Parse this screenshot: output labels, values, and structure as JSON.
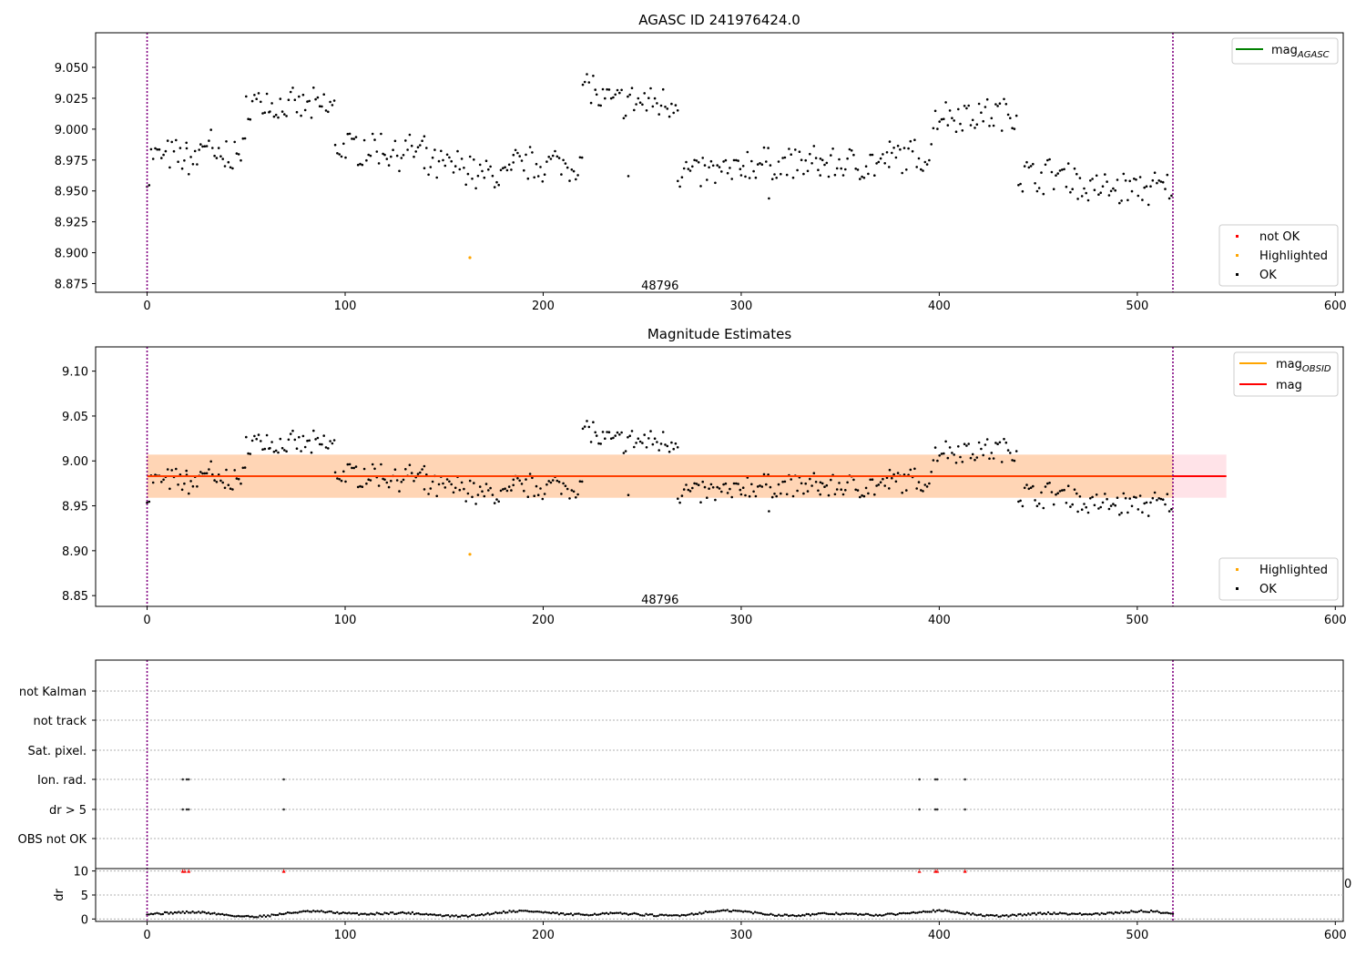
{
  "chart_data": [
    {
      "type": "scatter",
      "title": "AGASC ID 241976424.0",
      "xlim": [
        -26,
        604
      ],
      "ylim": [
        8.868,
        9.078
      ],
      "x_ticks": [
        "0",
        "100",
        "200",
        "300",
        "400",
        "500",
        "600"
      ],
      "y_ticks": [
        "8.875",
        "8.900",
        "8.925",
        "8.950",
        "8.975",
        "9.000",
        "9.025",
        "9.050"
      ],
      "vlines": [
        0,
        518
      ],
      "annotation": {
        "text": "48796",
        "x": 259,
        "y": 8.874
      },
      "legend_lines": [
        {
          "base": "mag",
          "sub": "AGASC",
          "color": "#008000"
        }
      ],
      "legend_points": [
        {
          "label": "not OK",
          "color": "#ff0000"
        },
        {
          "label": "Highlighted",
          "color": "#ffa500"
        },
        {
          "label": "OK",
          "color": "#000000"
        }
      ],
      "highlighted": [
        {
          "x": 163,
          "y": 8.896
        }
      ]
    },
    {
      "type": "scatter",
      "title": "Magnitude Estimates",
      "xlim": [
        -26,
        604
      ],
      "ylim": [
        8.838,
        9.127
      ],
      "x_ticks": [
        "0",
        "100",
        "200",
        "300",
        "400",
        "500",
        "600"
      ],
      "y_ticks": [
        "8.85",
        "8.90",
        "8.95",
        "9.00",
        "9.05",
        "9.10"
      ],
      "vlines": [
        0,
        518
      ],
      "annotation": {
        "text": "48796",
        "x": 259,
        "y": 8.846
      },
      "mag_line": {
        "value": 8.983,
        "band": [
          8.959,
          9.007
        ],
        "x": [
          0,
          545
        ]
      },
      "legend_lines": [
        {
          "base": "mag",
          "sub": "OBSID",
          "color": "#ffa500"
        },
        {
          "base": "mag",
          "sub": "",
          "color": "#ff0000"
        }
      ],
      "legend_points": [
        {
          "label": "Highlighted",
          "color": "#ffa500"
        },
        {
          "label": "OK",
          "color": "#000000"
        }
      ],
      "highlighted": [
        {
          "x": 163,
          "y": 8.896
        }
      ]
    },
    {
      "type": "scatter",
      "title": "",
      "xlim": [
        -26,
        604
      ],
      "flag_rows": [
        "not Kalman",
        "not track",
        "Sat. pixel.",
        "Ion. rad.",
        "dr > 5",
        "OBS not OK"
      ],
      "flags": {
        "Ion. rad.": [
          18,
          20,
          21,
          69,
          390,
          398,
          399,
          413
        ],
        "dr > 5": [
          18,
          20,
          21,
          69,
          390,
          398,
          399,
          413
        ]
      },
      "dr_ylabel": "dr",
      "dr_ticks": [
        "0",
        "5",
        "10"
      ],
      "dr_ylim": [
        -0.5,
        10.5
      ],
      "dr_outliers_x": [
        18,
        19,
        21,
        69,
        390,
        398,
        399,
        413
      ],
      "x_ticks": [
        "0",
        "100",
        "200",
        "300",
        "400",
        "500",
        "600"
      ],
      "clipped_tick": "0",
      "vlines": [
        0,
        518
      ]
    }
  ]
}
